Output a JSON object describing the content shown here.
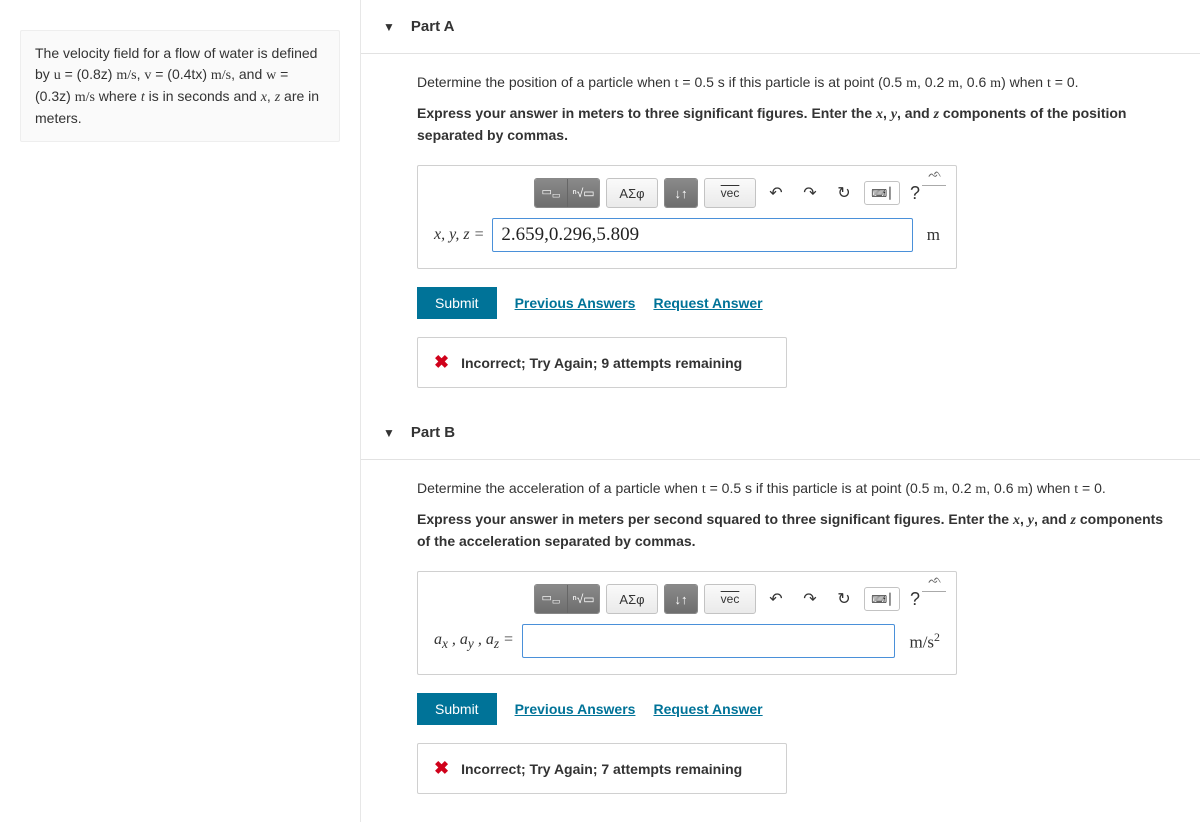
{
  "left_panel": {
    "prompt": {
      "pre": "The velocity field for a flow of water is defined by ",
      "u_eq": "u = (0.8z) m/s",
      "sep1": ", ",
      "v_eq": "v = (0.4tx) m/s",
      "sep2": ", and ",
      "w_eq": "w = (0.3z) m/s",
      "post": " where ",
      "timevar": "t",
      "mid": " is in seconds and ",
      "spacevars": "x",
      "comma": ", ",
      "zvar": "z",
      "end": " are in meters."
    }
  },
  "partA": {
    "title": "Part A",
    "instruction_pre": "Determine the position of a particle when ",
    "t_expr": "t = 0.5 s",
    "instruction_mid": " if this particle is at point ",
    "point": "(0.5 m, 0.2 m, 0.6 m)",
    "instruction_when": " when ",
    "t0": "t = 0",
    "instruction_end": ".",
    "instruction_bold_pre": "Express your answer in meters to three significant figures. Enter the ",
    "x": "x",
    "y": "y",
    "z": "z",
    "instruction_bold_post": " components of the position separated by commas.",
    "var_label": "x, y, z =",
    "input_value": "2.659,0.296,5.809",
    "unit": "m",
    "submit": "Submit",
    "prev": "Previous Answers",
    "request": "Request Answer",
    "feedback": "Incorrect; Try Again; 9 attempts remaining"
  },
  "partB": {
    "title": "Part B",
    "instruction_pre": "Determine the acceleration of a particle when ",
    "t_expr": "t = 0.5 s",
    "instruction_mid": " if this particle is at point ",
    "point": "(0.5 m, 0.2 m, 0.6 m)",
    "instruction_when": " when ",
    "t0": "t = 0",
    "instruction_end": ".",
    "instruction_bold_pre": "Express your answer in meters per second squared to three significant figures. Enter the ",
    "x": "x",
    "y": "y",
    "z": "z",
    "instruction_bold_post": " components of the acceleration separated by commas.",
    "var_label_html": "a",
    "var_sub_x": "x",
    "var_sub_y": "y",
    "var_sub_z": "z",
    "input_value": "",
    "unit_html": "m/s²",
    "submit": "Submit",
    "prev": "Previous Answers",
    "request": "Request Answer",
    "feedback": "Incorrect; Try Again; 7 attempts remaining"
  },
  "toolbar": {
    "templates_label": "",
    "sqrt_label": "√",
    "greek_label": "ΑΣφ",
    "sub_label": "↕",
    "vec_label": "vec",
    "undo_label": "↶",
    "redo_label": "↷",
    "reset_label": "↻",
    "keyboard_label": "⌨ ⎮",
    "help_label": "?"
  }
}
